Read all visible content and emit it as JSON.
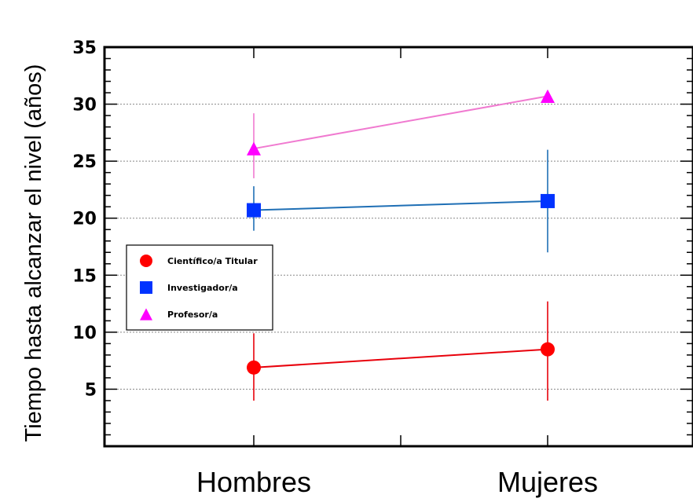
{
  "chart_data": {
    "type": "line",
    "title": "",
    "xlabel": "",
    "ylabel": "Tiempo hasta alcanzar el nivel (años)",
    "categories": [
      "Hombres",
      "Mujeres"
    ],
    "ylim": [
      0,
      35
    ],
    "yticks": [
      5,
      10,
      15,
      20,
      25,
      30,
      35
    ],
    "grid": "horizontal dotted",
    "legend_position": "middle-left",
    "series": [
      {
        "name": "Científico/a Titular",
        "marker": "circle",
        "marker_color": "#ff0000",
        "line_color": "#e8000b",
        "values": [
          6.9,
          8.5
        ],
        "errors": [
          [
            4.0,
            9.9
          ],
          [
            4.0,
            12.7
          ]
        ]
      },
      {
        "name": "Investigador/a",
        "marker": "square",
        "marker_color": "#0033ff",
        "line_color": "#1f6fb5",
        "values": [
          20.7,
          21.5
        ],
        "errors": [
          [
            18.9,
            22.8
          ],
          [
            17.0,
            26.0
          ]
        ]
      },
      {
        "name": "Profesor/a",
        "marker": "triangle",
        "marker_color": "#ff00ff",
        "line_color": "#f07ad0",
        "values": [
          26.1,
          30.7
        ],
        "errors": [
          [
            23.5,
            29.2
          ],
          [
            30.7,
            30.7
          ]
        ]
      }
    ]
  }
}
